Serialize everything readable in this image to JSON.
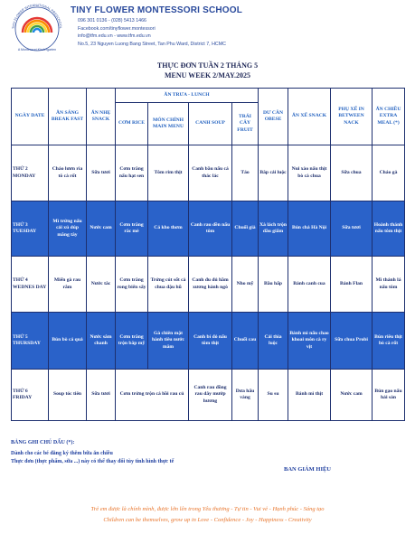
{
  "header": {
    "logo_ring": "TINY FLOWER INTERNATIONAL PRESCHOOL",
    "logo_tagline": "A Montessori Kindergarten",
    "school_name": "TINY FLOWER MONTESSORI SCHOOL",
    "contacts": [
      "096 301 0136 - (028) 5413 1466",
      "Facebook.com/tinyflower.montessori",
      "info@tfm.edu.vn - www.tfm.edu.vn",
      "No.5, 23 Nguyen Luong Bang Street, Tan Phu Ward, District 7, HCMC"
    ]
  },
  "title": [
    "THỰC ĐƠN TUẦN 2 THÁNG 5",
    "MENU WEEK 2/MAY.2025"
  ],
  "table": {
    "columns_before": [
      "NGÀY DATE",
      "ĂN SÁNG BREAK FAST",
      "ĂN NHẸ SNACK"
    ],
    "lunch_group": "ĂN TRƯA - LUNCH",
    "lunch_columns": [
      "CƠM RICE",
      "MÓN CHÍNH MAIN MENU",
      "CANH SOUP",
      "TRÁI CÂY FRUIT"
    ],
    "columns_after": [
      "DƯ CÂN OBESE",
      "ĂN XẾ SNACK",
      "PHỤ XẾ IN BETWEEN NACK",
      "ĂN CHIỀU EXTRA MEAL (*)"
    ],
    "rows": [
      [
        "THỨ 2 MONDAY",
        "Cháo lươn rìa tô cà rốt",
        "Sữa tươi",
        "Cơm trắng nấu hạt sen",
        "Tôm rim thịt",
        "Canh bầu nấu cá thác lác",
        "Táo",
        "Bắp cải luộc",
        "Nui xào nấu thịt bò cà chua",
        "Sữa chua",
        "Cháo gà"
      ],
      [
        "THỨ 3 TUESDAY",
        "Mì trứng nấu cải xú dúp măng tây",
        "Nước cam",
        "Cơm trắng rắc mè",
        "Cá kho thơm",
        "Canh rau dền nấu tôm",
        "Chuối già",
        "Xà lách trộn dầu giấm",
        "Bún chả Hà Nội",
        "Sữa tươi",
        "Hoành thánh nấu tôm thịt"
      ],
      [
        "THỨ 4 WEDNES DAY",
        "Miến gà rau răm",
        "Nước tắc",
        "Cơm trắng rong biển sấy",
        "Trứng cút sốt cà chua đậu hũ",
        "Canh đu đủ hầm xương hành ngò",
        "Nho mỹ",
        "Bầu hấp",
        "Bánh canh cua",
        "Bánh Flan",
        "Mì thánh lá nấu tôm"
      ],
      [
        "THỨ 5 THURSDAY",
        "Bún bò cá quả",
        "Nước sâm chanh",
        "Cơm trắng trộn bắp mỹ",
        "Gà chiên mật hành tiêu nước mắm",
        "Canh bí đỏ nấu tôm thịt",
        "Chuối cau",
        "Cải thìa luộc",
        "Bánh mì nấu chao khoai môn cà ry vịt",
        "Sữa chua Probi",
        "Bún riêu thịt bò cà rốt"
      ],
      [
        "THỨ 6 FRIDAY",
        "Soup tóc tiên",
        "Sữa tươi",
        "Cơm trứng trộn cá hồi rau củ",
        null,
        "Canh rau đồng rau dây mướp hương",
        "Dưa hấu vàng",
        "Su su",
        "Bánh mì thịt",
        "Nước cam",
        "Bún gạo nấu hải sản"
      ]
    ]
  },
  "notes": {
    "heading": "BẢNG GHI CHÚ DẤU (*):",
    "lines": [
      "Dành cho các bé đăng ký thêm bữa ăn chiều",
      "Thực đơn (thực phẩm, sữa ...) này có thể thay đổi tùy tình hình thực tế"
    ],
    "signature": "BAN GIÁM HIỆU"
  },
  "footer": [
    "Trẻ em được là chính mình, được lớn lên trong Yêu thương - Tự tin - Vui vẻ - Hạnh phúc - Sáng tạo",
    "Children can be themselves, grow up in Love - Confidence - Joy - Happiness - Creativity"
  ]
}
